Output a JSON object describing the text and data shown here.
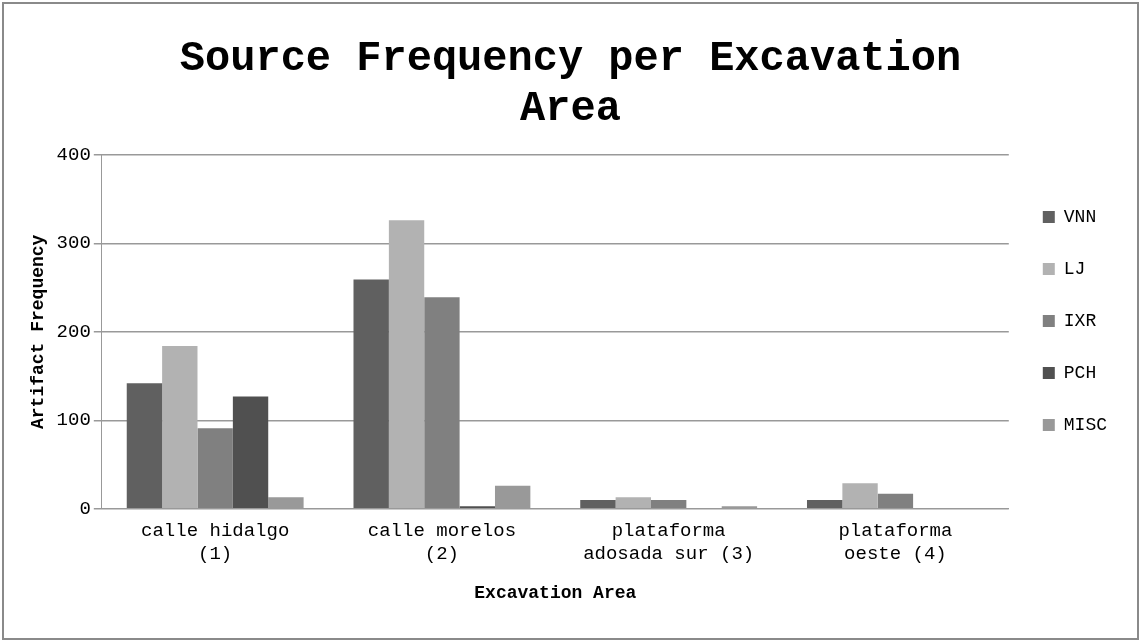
{
  "chart_data": {
    "type": "bar",
    "title": "Source Frequency per Excavation Area",
    "xlabel": "Excavation Area",
    "ylabel": "Artifact Frequency",
    "categories": [
      "calle hidalgo (1)",
      "calle morelos (2)",
      "plataforma adosada sur (3)",
      "plataforma oeste (4)"
    ],
    "series": [
      {
        "name": "VNN",
        "color": "#606060",
        "values": [
          142,
          259,
          10,
          10
        ]
      },
      {
        "name": "LJ",
        "color": "#b2b2b2",
        "values": [
          184,
          326,
          13,
          29
        ]
      },
      {
        "name": "IXR",
        "color": "#808080",
        "values": [
          91,
          239,
          10,
          17
        ]
      },
      {
        "name": "PCH",
        "color": "#505050",
        "values": [
          127,
          3,
          0,
          0
        ]
      },
      {
        "name": "MISC",
        "color": "#999999",
        "values": [
          13,
          26,
          3,
          0
        ]
      }
    ],
    "ylim": [
      0,
      400
    ],
    "yticks": [
      0,
      100,
      200,
      300,
      400
    ],
    "grid": "y",
    "legend": "right"
  }
}
